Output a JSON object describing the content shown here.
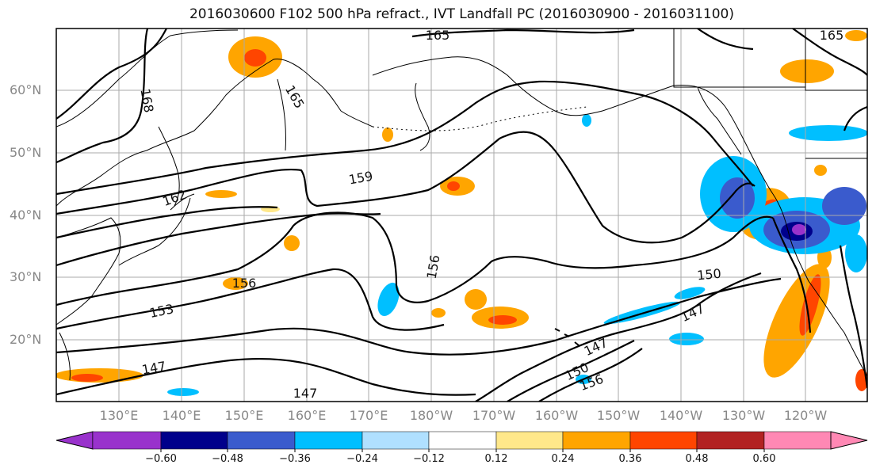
{
  "title": "2016030600 F102 500 hPa refract., IVT Landfall PC (2016030900 - 2016031100)",
  "lat_labels": [
    "60°N",
    "50°N",
    "40°N",
    "30°N",
    "20°N"
  ],
  "lon_labels": [
    "130°E",
    "140°E",
    "150°E",
    "160°E",
    "170°E",
    "180°W",
    "170°W",
    "160°W",
    "150°W",
    "140°W",
    "130°W",
    "120°W"
  ],
  "contour_labels": [
    "165",
    "168",
    "165",
    "165",
    "162",
    "159",
    "156",
    "156",
    "153",
    "150",
    "147",
    "147",
    "147",
    "147",
    "150",
    "156"
  ],
  "colorbar": {
    "ticks": [
      "−0.60",
      "−0.48",
      "−0.36",
      "−0.24",
      "−0.12",
      "0.12",
      "0.24",
      "0.36",
      "0.48",
      "0.60"
    ],
    "colors": [
      "#9932CC",
      "#00008B",
      "#3A5BCD",
      "#00BFFF",
      "#B0E0FF",
      "#FFFFFF",
      "#FFE88A",
      "#FFA500",
      "#FF4500",
      "#B22222",
      "#FF88B4"
    ]
  }
}
